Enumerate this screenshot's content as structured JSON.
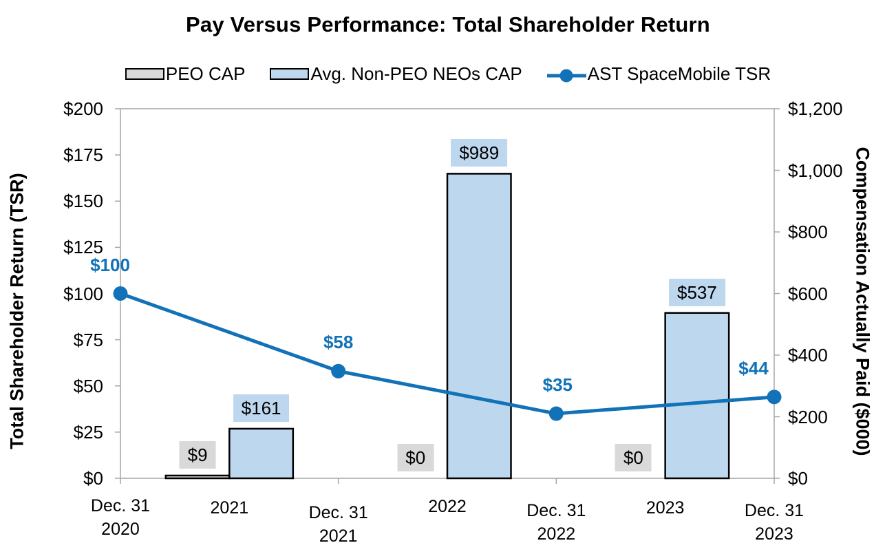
{
  "chart_data": {
    "type": "combo-bar-line",
    "title": "Pay Versus Performance: Total Shareholder Return",
    "legend": [
      "PEO CAP",
      "Avg. Non-PEO NEOs CAP",
      "AST SpaceMobile TSR"
    ],
    "left_axis": {
      "label": "Total Shareholder Return (TSR)",
      "tick_labels": [
        "$0",
        "$25",
        "$50",
        "$75",
        "$100",
        "$125",
        "$150",
        "$175",
        "$200"
      ],
      "min": 0,
      "max": 200
    },
    "right_axis": {
      "label": "Compensation Actually Paid ($000)",
      "tick_labels": [
        "$0",
        "$200",
        "$400",
        "$600",
        "$800",
        "$1,000",
        "$1,200"
      ],
      "min": 0,
      "max": 1200
    },
    "x_axis": {
      "boundary_labels": [
        [
          "Dec. 31",
          "2020"
        ],
        [
          "Dec. 31",
          "2021"
        ],
        [
          "Dec. 31",
          "2022"
        ],
        [
          "Dec. 31",
          "2023"
        ]
      ],
      "mid_labels": [
        "2021",
        "2022",
        "2023"
      ]
    },
    "bars": {
      "axis": "right",
      "categories": [
        "2021",
        "2022",
        "2023"
      ],
      "series": [
        {
          "name": "PEO CAP",
          "color": "#D9D9D9",
          "values": [
            9,
            0,
            0
          ],
          "data_labels": [
            "$9",
            "$0",
            "$0"
          ]
        },
        {
          "name": "Avg. Non-PEO NEOs CAP",
          "color": "#BDD7EE",
          "values": [
            161,
            989,
            537
          ],
          "data_labels": [
            "$161",
            "$989",
            "$537"
          ]
        }
      ]
    },
    "line": {
      "axis": "left",
      "name": "AST SpaceMobile TSR",
      "color": "#1272B8",
      "x": [
        "Dec. 31 2020",
        "Dec. 31 2021",
        "Dec. 31 2022",
        "Dec. 31 2023"
      ],
      "values": [
        100,
        58,
        35,
        44
      ],
      "data_labels": [
        "$100",
        "$58",
        "$35",
        "$44"
      ]
    },
    "colors": {
      "axis_line": "#A6A6A6",
      "bar_border": "#000000",
      "grid": "none"
    },
    "layout_hints": {
      "legend_position": "top",
      "grid": false
    }
  }
}
